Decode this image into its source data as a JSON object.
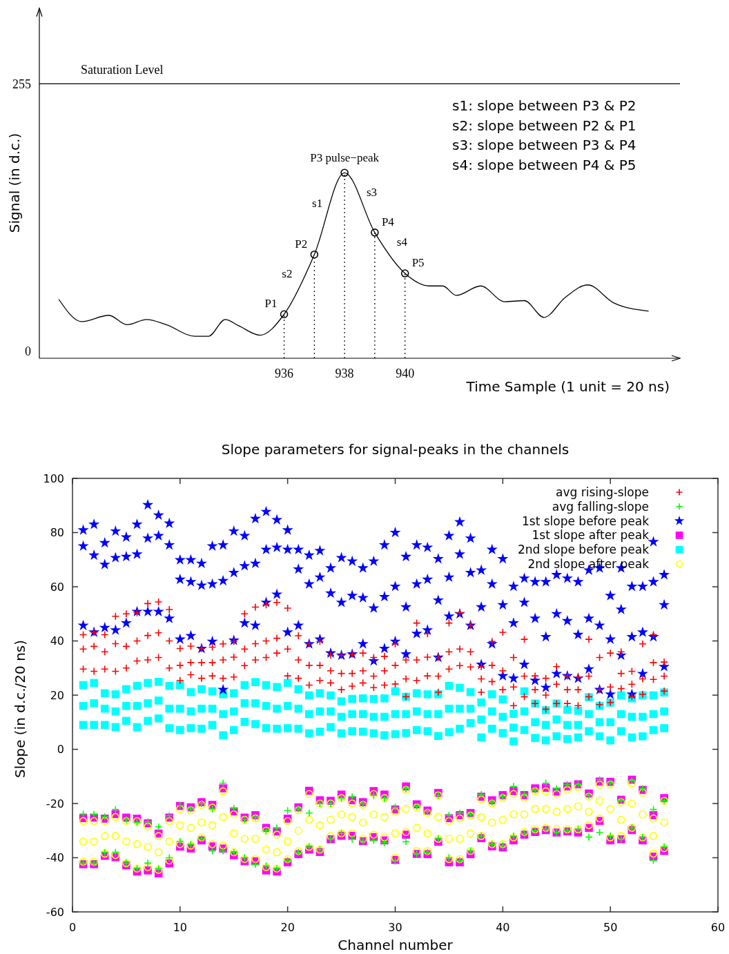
{
  "chart_data": [
    {
      "type": "line",
      "xlabel": "Time Sample (1 unit = 20 ns)",
      "ylabel": "Signal (in d.c.)",
      "xlim": [
        927.9,
        949.1
      ],
      "ylim": [
        -7,
        327
      ],
      "xticks": [
        936,
        938,
        940
      ],
      "yticks": [
        0,
        255
      ],
      "ref_lines": [
        {
          "axis": "y",
          "value": 255,
          "label": "Saturation Level",
          "color": "#000000"
        }
      ],
      "annotations": [
        "s1: slope between P3 & P2",
        "s2: slope between P2 & P1",
        "s3: slope between P3 & P4",
        "s4: slope between P4 & P5",
        {
          "text": "P1",
          "x": 936,
          "y": 35
        },
        {
          "text": "P2",
          "x": 937,
          "y": 92
        },
        {
          "text": "P3  pulse−peak",
          "x": 938,
          "y": 170
        },
        {
          "text": "P4",
          "x": 939,
          "y": 113
        },
        {
          "text": "P5",
          "x": 940,
          "y": 74
        },
        {
          "text": "s1",
          "x": 937.5,
          "y": 131
        },
        {
          "text": "s2",
          "x": 936.5,
          "y": 63.5
        },
        {
          "text": "s3",
          "x": 938.5,
          "y": 141.5
        },
        {
          "text": "s4",
          "x": 939.5,
          "y": 93.5
        }
      ],
      "series": [
        {
          "color": "#000000",
          "marker": "none",
          "x": [
            928.55,
            929.3,
            930.2,
            930.8,
            931.45,
            932.1,
            933.05,
            933.5,
            934.05,
            934.5,
            935.2,
            936,
            937,
            938,
            939,
            940,
            940.8,
            941.25,
            941.7,
            942.5,
            943.3,
            943.95,
            944.6,
            945.3,
            946.05,
            946.9,
            948.05
          ],
          "values": [
            49,
            28,
            34,
            25,
            30,
            25,
            14,
            14,
            30,
            24,
            15,
            35,
            92,
            170,
            113,
            74,
            62,
            62,
            53,
            62,
            47,
            48,
            32,
            51,
            63,
            46,
            38
          ]
        },
        {
          "type": "lollipop",
          "color": "#000000",
          "marker": "circle",
          "line_style": "dotted",
          "x": [
            936,
            937,
            938,
            939,
            940
          ],
          "values": [
            35,
            92,
            170,
            113,
            74
          ]
        }
      ]
    },
    {
      "type": "scatter",
      "title": "Slope parameters for signal-peaks in the channels",
      "xlabel": "Channel number",
      "ylabel": "Slope (in d.c./20 ns)",
      "xlim": [
        0,
        60
      ],
      "ylim": [
        -60,
        100
      ],
      "xticks": [
        0,
        10,
        20,
        30,
        40,
        50,
        60
      ],
      "yticks": [
        -60,
        -40,
        -20,
        0,
        20,
        40,
        60,
        80,
        100
      ],
      "legend": "top right",
      "series": [
        {
          "name": "avg rising-slope",
          "color": "#ff0000",
          "marker": "cross",
          "x": [
            1,
            1,
            1,
            2,
            2,
            2,
            3,
            3,
            3,
            4,
            4,
            4,
            5,
            5,
            5,
            6,
            6,
            6,
            7,
            7,
            7,
            8,
            8,
            8,
            9,
            9,
            9,
            10,
            10,
            10,
            11,
            11,
            11,
            12,
            12,
            12,
            13,
            13,
            13,
            14,
            14,
            14,
            15,
            15,
            15,
            16,
            16,
            16,
            17,
            17,
            17,
            18,
            18,
            18,
            19,
            19,
            19,
            20,
            20,
            20,
            21,
            21,
            21,
            22,
            22,
            22,
            23,
            23,
            23,
            24,
            24,
            24,
            25,
            25,
            25,
            26,
            26,
            26,
            27,
            27,
            27,
            28,
            28,
            28,
            29,
            29,
            29,
            30,
            30,
            30,
            31,
            31,
            31,
            32,
            32,
            32,
            33,
            33,
            33,
            34,
            34,
            34,
            35,
            35,
            35,
            36,
            36,
            36,
            37,
            37,
            37,
            38,
            38,
            38,
            39,
            39,
            39,
            40,
            40,
            40,
            41,
            41,
            41,
            42,
            42,
            42,
            43,
            43,
            43,
            44,
            44,
            44,
            45,
            45,
            45,
            46,
            46,
            46,
            47,
            47,
            47,
            48,
            48,
            48,
            49,
            49,
            49,
            50,
            50,
            50,
            51,
            51,
            51,
            52,
            52,
            52,
            53,
            53,
            53,
            54,
            54,
            54,
            55,
            55,
            55
          ],
          "values": [
            29.6,
            37,
            42.3,
            28.8,
            38,
            43.2,
            29.6,
            36,
            42.3,
            28.8,
            39,
            49.1,
            30,
            38,
            50,
            32.6,
            40,
            50.4,
            33,
            42,
            53.8,
            33.9,
            43,
            54.4,
            30,
            40,
            51.6,
            25.4,
            31,
            37.2,
            27.5,
            32,
            38.1,
            26.2,
            32,
            37.2,
            27.1,
            32,
            37.7,
            26.2,
            33,
            38.9,
            26.7,
            34,
            39.8,
            30.9,
            37,
            50,
            33,
            39,
            52.5,
            33.9,
            40,
            53.3,
            35.5,
            41,
            54.2,
            27.1,
            37,
            52.1,
            26.2,
            33,
            41.9,
            23.7,
            31,
            38.9,
            25.4,
            31,
            39.8,
            24.5,
            29,
            34.7,
            22,
            28,
            34.7,
            23.3,
            28,
            35.1,
            24.5,
            29,
            35.5,
            22.8,
            27,
            33.9,
            23.7,
            29,
            34.3,
            24.1,
            31,
            38.9,
            19.4,
            26,
            33,
            25.4,
            33,
            46.6,
            27.1,
            34,
            42.7,
            21.1,
            27,
            33.9,
            29.6,
            36,
            46.6,
            30.9,
            37,
            50.4,
            30.4,
            36,
            45.7,
            21.1,
            26,
            30.5,
            25,
            31,
            39.8,
            22,
            29,
            43.2,
            16.1,
            23,
            33.9,
            19.4,
            27,
            40.6,
            16.9,
            22,
            27.1,
            14.8,
            20,
            26.2,
            16.9,
            24,
            30.5,
            16.9,
            22,
            27.1,
            16.1,
            22,
            26.7,
            19.4,
            27,
            40.6,
            16.5,
            22,
            33.9,
            17.3,
            23,
            35.5,
            22.4,
            28,
            36,
            19.4,
            24,
            28.8,
            20.3,
            26,
            38.9,
            25.8,
            32,
            42.3,
            21.5,
            27,
            32.2
          ]
        },
        {
          "name": "avg falling-slope",
          "color": "#00ff00",
          "marker": "cross",
          "x": [
            1,
            1,
            2,
            2,
            3,
            3,
            4,
            4,
            5,
            5,
            6,
            6,
            7,
            7,
            8,
            8,
            9,
            9,
            10,
            10,
            11,
            11,
            12,
            12,
            13,
            13,
            14,
            14,
            15,
            15,
            16,
            16,
            17,
            17,
            18,
            18,
            19,
            19,
            20,
            20,
            21,
            21,
            22,
            22,
            23,
            23,
            24,
            24,
            25,
            25,
            26,
            26,
            27,
            27,
            28,
            28,
            29,
            29,
            30,
            30,
            31,
            31,
            32,
            32,
            33,
            33,
            34,
            34,
            35,
            35,
            36,
            36,
            37,
            37,
            38,
            38,
            39,
            39,
            40,
            40,
            41,
            41,
            42,
            42,
            43,
            43,
            44,
            44,
            45,
            45,
            46,
            46,
            47,
            47,
            48,
            48,
            49,
            49,
            50,
            50,
            51,
            51,
            52,
            52,
            53,
            53,
            54,
            54,
            55,
            55
          ],
          "values": [
            -23.9,
            -42,
            -24,
            -42,
            -24.9,
            -38,
            -22.2,
            -38,
            -26,
            -42,
            -27,
            -44,
            -26.8,
            -42,
            -28.6,
            -44,
            -24.5,
            -40,
            -20.7,
            -34,
            -22,
            -35,
            -20,
            -33,
            -22,
            -37.5,
            -12.5,
            -37.5,
            -21.8,
            -38,
            -26,
            -40,
            -25,
            -42.5,
            -30,
            -43,
            -29,
            -44,
            -22.6,
            -41,
            -22,
            -38,
            -23.5,
            -36,
            -20,
            -37,
            -20,
            -33.2,
            -18,
            -31,
            -17.5,
            -33.2,
            -20,
            -33.9,
            -17,
            -33.6,
            -18,
            -34.5,
            -21.4,
            -41.3,
            -14.5,
            -34.1,
            -21,
            -38.6,
            -23,
            -38,
            -17,
            -33,
            -24.3,
            -40,
            -23.5,
            -41,
            -24,
            -37.5,
            -16.7,
            -32,
            -19.5,
            -35,
            -17.5,
            -35.5,
            -13.7,
            -32,
            -16.5,
            -31,
            -15,
            -30,
            -12.5,
            -29.5,
            -14.5,
            -30.7,
            -13,
            -30,
            -12.9,
            -29.5,
            -17,
            -32.4,
            -11.2,
            -30.7,
            -12.5,
            -32,
            -19,
            -33.2,
            -11.5,
            -29,
            -14.5,
            -32.5,
            -22.2,
            -41,
            -19,
            -36
          ]
        },
        {
          "name": "1st slope before peak",
          "color": "#0000ff",
          "marker": "star",
          "x": [
            1,
            1,
            1,
            2,
            2,
            2,
            3,
            3,
            3,
            4,
            4,
            4,
            5,
            5,
            5,
            6,
            6,
            6,
            7,
            7,
            7,
            8,
            8,
            8,
            9,
            9,
            9,
            10,
            10,
            10,
            11,
            11,
            11,
            12,
            12,
            12,
            13,
            13,
            13,
            14,
            14,
            14,
            15,
            15,
            15,
            16,
            16,
            16,
            17,
            17,
            17,
            18,
            18,
            18,
            19,
            19,
            19,
            20,
            20,
            20,
            21,
            21,
            21,
            22,
            22,
            22,
            23,
            23,
            23,
            24,
            24,
            24,
            25,
            25,
            25,
            26,
            26,
            26,
            27,
            27,
            27,
            28,
            28,
            28,
            29,
            29,
            29,
            30,
            30,
            30,
            31,
            31,
            31,
            32,
            32,
            32,
            33,
            33,
            33,
            34,
            34,
            34,
            35,
            35,
            35,
            36,
            36,
            36,
            37,
            37,
            37,
            38,
            38,
            38,
            39,
            39,
            39,
            40,
            40,
            40,
            41,
            41,
            41,
            42,
            42,
            42,
            43,
            43,
            43,
            44,
            44,
            44,
            45,
            45,
            45,
            46,
            46,
            46,
            47,
            47,
            47,
            48,
            48,
            48,
            49,
            49,
            49,
            50,
            50,
            50,
            51,
            51,
            51,
            52,
            52,
            52,
            53,
            53,
            53,
            54,
            54,
            54,
            55,
            55,
            55
          ],
          "values": [
            45.7,
            75,
            80.9,
            43.2,
            71.6,
            83,
            44.9,
            68.2,
            76.2,
            44,
            70.7,
            80.5,
            46.6,
            71.1,
            78.3,
            50.8,
            72,
            83,
            50.8,
            77.9,
            90.2,
            50.8,
            78.8,
            86.4,
            48.3,
            75.4,
            83.4,
            40.6,
            62.7,
            69.9,
            41.9,
            61.8,
            69.9,
            37.2,
            60.5,
            68.6,
            39.8,
            61,
            75,
            22,
            62.2,
            75.4,
            40.2,
            65.2,
            80.5,
            46.6,
            67.7,
            78.8,
            45.7,
            68.6,
            85.1,
            54.2,
            73.7,
            87.7,
            57.2,
            74.5,
            84.7,
            43.2,
            73.7,
            80.9,
            45.7,
            66.5,
            73.7,
            38.9,
            61,
            71.6,
            40.6,
            63.5,
            73.3,
            35.5,
            57.6,
            66.9,
            34.7,
            54.2,
            70.7,
            35.1,
            56.7,
            69.4,
            38.9,
            55.9,
            66.9,
            32.6,
            52.1,
            69.4,
            37.2,
            56.3,
            75.4,
            39.8,
            60.1,
            80,
            35.1,
            52.5,
            71.1,
            42.7,
            61,
            75.4,
            44,
            62.7,
            74.5,
            33.9,
            55,
            70.3,
            49.1,
            63.5,
            78.8,
            50,
            72,
            83.9,
            45.7,
            65.2,
            77.9,
            31.3,
            52.5,
            66.1,
            38.9,
            61,
            73.7,
            27.1,
            53.3,
            70.3,
            26.2,
            46.6,
            60.1,
            31.3,
            54.2,
            63.1,
            25.4,
            48.3,
            61.8,
            22.8,
            41.5,
            61.8,
            27.9,
            50,
            64.4,
            27.1,
            47.4,
            63.1,
            26.2,
            42.3,
            61.8,
            29.6,
            48.3,
            66.1,
            22,
            45.7,
            66.9,
            20.3,
            40.6,
            56.7,
            34.7,
            51.6,
            66.9,
            20.3,
            41.5,
            60.1,
            27.9,
            43.2,
            60.1,
            41.5,
            61.8,
            76.6,
            30.5,
            53.3,
            64.4
          ]
        },
        {
          "name": "1st slope after peak",
          "color": "#ff00ff",
          "marker": "square",
          "x": [
            1,
            1,
            2,
            2,
            3,
            3,
            4,
            4,
            5,
            5,
            6,
            6,
            7,
            7,
            8,
            8,
            9,
            9,
            10,
            10,
            11,
            11,
            12,
            12,
            13,
            13,
            14,
            14,
            15,
            15,
            16,
            16,
            17,
            17,
            18,
            18,
            19,
            19,
            20,
            20,
            21,
            21,
            22,
            22,
            23,
            23,
            24,
            24,
            25,
            25,
            26,
            26,
            27,
            27,
            28,
            28,
            29,
            29,
            30,
            30,
            31,
            31,
            32,
            32,
            33,
            33,
            34,
            34,
            35,
            35,
            36,
            36,
            37,
            37,
            38,
            38,
            39,
            39,
            40,
            40,
            41,
            41,
            42,
            42,
            43,
            43,
            44,
            44,
            45,
            45,
            46,
            46,
            47,
            47,
            48,
            48,
            49,
            49,
            50,
            50,
            51,
            51,
            52,
            52,
            53,
            53,
            54,
            54,
            55,
            55
          ],
          "values": [
            -25.4,
            -42.4,
            -25.2,
            -42.4,
            -25.6,
            -39.3,
            -23.9,
            -39.8,
            -25.2,
            -42.8,
            -25.6,
            -45.1,
            -27.3,
            -44.7,
            -31.1,
            -45.8,
            -25.2,
            -42.1,
            -20.9,
            -35.9,
            -21.4,
            -36.6,
            -19.5,
            -33.6,
            -20.5,
            -35.8,
            -14.4,
            -36.6,
            -22.9,
            -39.1,
            -25.2,
            -41.3,
            -24.3,
            -41.3,
            -29,
            -44.7,
            -30.3,
            -45.1,
            -25.6,
            -41.7,
            -21.4,
            -38.7,
            -15.3,
            -37,
            -18.8,
            -37.9,
            -19,
            -33.2,
            -16.7,
            -31.9,
            -18.8,
            -31.9,
            -19.5,
            -33.9,
            -15.4,
            -32.4,
            -16.7,
            -33.6,
            -22.2,
            -40.8,
            -13.7,
            -31.5,
            -20.3,
            -38.6,
            -22.6,
            -38.7,
            -16.1,
            -34.1,
            -25.4,
            -41.7,
            -24.3,
            -41.7,
            -23.5,
            -38.7,
            -17.5,
            -32.8,
            -18.8,
            -35.8,
            -16.9,
            -36.2,
            -15.4,
            -33.6,
            -16.9,
            -31.5,
            -14.4,
            -30.5,
            -14.2,
            -29.8,
            -15.6,
            -30.7,
            -13.7,
            -30.3,
            -12.9,
            -30.7,
            -16.3,
            -29,
            -11.9,
            -26.4,
            -12,
            -33.6,
            -18.6,
            -33.2,
            -11.2,
            -29.8,
            -15,
            -33.6,
            -24.3,
            -39.6,
            -18,
            -37.5
          ]
        },
        {
          "name": "2nd slope before peak",
          "color": "#00ffff",
          "marker": "square",
          "x": [
            1,
            1,
            1,
            2,
            2,
            2,
            3,
            3,
            3,
            4,
            4,
            4,
            5,
            5,
            5,
            6,
            6,
            6,
            7,
            7,
            7,
            8,
            8,
            8,
            9,
            9,
            9,
            10,
            10,
            10,
            11,
            11,
            11,
            12,
            12,
            12,
            13,
            13,
            13,
            14,
            14,
            14,
            15,
            15,
            15,
            16,
            16,
            16,
            17,
            17,
            17,
            18,
            18,
            18,
            19,
            19,
            19,
            20,
            20,
            20,
            21,
            21,
            21,
            22,
            22,
            22,
            23,
            23,
            23,
            24,
            24,
            24,
            25,
            25,
            25,
            26,
            26,
            26,
            27,
            27,
            27,
            28,
            28,
            28,
            29,
            29,
            29,
            30,
            30,
            30,
            31,
            31,
            31,
            32,
            32,
            32,
            33,
            33,
            33,
            34,
            34,
            34,
            35,
            35,
            35,
            36,
            36,
            36,
            37,
            37,
            37,
            38,
            38,
            38,
            39,
            39,
            39,
            40,
            40,
            40,
            41,
            41,
            41,
            42,
            42,
            42,
            43,
            43,
            43,
            44,
            44,
            44,
            45,
            45,
            45,
            46,
            46,
            46,
            47,
            47,
            47,
            48,
            48,
            48,
            49,
            49,
            49,
            50,
            50,
            50,
            51,
            51,
            51,
            52,
            52,
            52,
            53,
            53,
            53,
            54,
            54,
            54,
            55,
            55,
            55
          ],
          "values": [
            9,
            16,
            23.7,
            9,
            17,
            24.5,
            9,
            15,
            20.7,
            8.2,
            14,
            20.3,
            10.5,
            16,
            22.2,
            8.2,
            16,
            23.4,
            10.5,
            17,
            24.5,
            11.4,
            18,
            24.9,
            7.8,
            15,
            23.4,
            7.1,
            15,
            23.7,
            7.8,
            14,
            21.1,
            7.6,
            15,
            22.2,
            9,
            15,
            21.4,
            5.2,
            13,
            20.3,
            7.1,
            14,
            20.7,
            10.1,
            17,
            23.7,
            9.3,
            17,
            24.8,
            7.8,
            16,
            23.7,
            7.6,
            15,
            23,
            7.8,
            16,
            24.5,
            7.6,
            15,
            22.2,
            5.9,
            13,
            19.9,
            6.5,
            14,
            20.7,
            8.2,
            14,
            19.9,
            5.9,
            12,
            17.7,
            6.7,
            13,
            18.6,
            6.5,
            13,
            18.8,
            5.9,
            12,
            18.6,
            5.2,
            12,
            18.8,
            5.6,
            13,
            21.4,
            6,
            13,
            19.4,
            7.1,
            14,
            20.7,
            6.7,
            13,
            20.3,
            4.9,
            13,
            20.3,
            6.3,
            15,
            23.4,
            7.6,
            15,
            22.7,
            9.7,
            15,
            21.1,
            4.4,
            11,
            17.3,
            7.6,
            14,
            20.3,
            6,
            12,
            18.4,
            2.9,
            8,
            13.1,
            7.1,
            14,
            21.4,
            4.2,
            10,
            16.9,
            3.3,
            9,
            14.4,
            4.8,
            11,
            16.9,
            3.8,
            9,
            14.6,
            4.4,
            9,
            14.2,
            6.7,
            13,
            19.2,
            4.8,
            10,
            16,
            3.3,
            10,
            17.2,
            6.7,
            13,
            19.9,
            4.4,
            12,
            18.8,
            4.8,
            12,
            19.9,
            7.1,
            13,
            19.9,
            7.8,
            14,
            21
          ]
        },
        {
          "name": "2nd slope after peak",
          "color": "#ffff00",
          "marker": "circle",
          "x": [
            1,
            1,
            1,
            2,
            2,
            2,
            3,
            3,
            3,
            4,
            4,
            4,
            5,
            5,
            5,
            6,
            6,
            6,
            7,
            7,
            7,
            8,
            8,
            8,
            9,
            9,
            9,
            10,
            10,
            10,
            11,
            11,
            11,
            12,
            12,
            12,
            13,
            13,
            13,
            14,
            14,
            14,
            15,
            15,
            15,
            16,
            16,
            16,
            17,
            17,
            17,
            18,
            18,
            18,
            19,
            19,
            19,
            20,
            20,
            20,
            21,
            21,
            21,
            22,
            22,
            22,
            23,
            23,
            23,
            24,
            24,
            24,
            25,
            25,
            25,
            26,
            26,
            26,
            27,
            27,
            27,
            28,
            28,
            28,
            29,
            29,
            29,
            30,
            30,
            30,
            31,
            31,
            31,
            32,
            32,
            32,
            33,
            33,
            33,
            34,
            34,
            34,
            35,
            35,
            35,
            36,
            36,
            36,
            37,
            37,
            37,
            38,
            38,
            38,
            39,
            39,
            39,
            40,
            40,
            40,
            41,
            41,
            41,
            42,
            42,
            42,
            43,
            43,
            43,
            44,
            44,
            44,
            45,
            45,
            45,
            46,
            46,
            46,
            47,
            47,
            47,
            48,
            48,
            48,
            49,
            49,
            49,
            50,
            50,
            50,
            51,
            51,
            51,
            52,
            52,
            52,
            53,
            53,
            53,
            54,
            54,
            54,
            55,
            55,
            55
          ],
          "values": [
            -26.5,
            -34,
            -41.5,
            -26.5,
            -34,
            -41.5,
            -26.5,
            -32,
            -38.5,
            -25,
            -32,
            -39,
            -26.5,
            -34,
            -42,
            -26.5,
            -35,
            -44,
            -28.5,
            -36,
            -43.5,
            -32,
            -38,
            -44.5,
            -26.5,
            -34,
            -41,
            -22,
            -28,
            -35,
            -22.5,
            -29,
            -35.5,
            -20.5,
            -27,
            -32.5,
            -21.5,
            -28,
            -35,
            -15.5,
            -25,
            -35.5,
            -24,
            -31,
            -38,
            -26,
            -33,
            -40.5,
            -25.5,
            -33,
            -40.5,
            -30,
            -37,
            -43.5,
            -31.5,
            -38,
            -44,
            -26.5,
            -34,
            -40.5,
            -22.5,
            -30,
            -37.5,
            -16.5,
            -26,
            -36,
            -20,
            -28,
            -37,
            -20,
            -26,
            -32,
            -18,
            -24,
            -31,
            -20,
            -25,
            -31,
            -20.5,
            -27,
            -33,
            -16.5,
            -24,
            -31.5,
            -18,
            -25,
            -32.5,
            -23,
            -31,
            -40,
            -15,
            -22,
            -30.5,
            -21.5,
            -29,
            -37.5,
            -23.5,
            -31,
            -37.5,
            -17,
            -25,
            -33,
            -26.5,
            -33,
            -40.5,
            -25.5,
            -33,
            -40.5,
            -24.5,
            -31,
            -37.5,
            -18.5,
            -25,
            -32,
            -20,
            -27,
            -35,
            -18,
            -26,
            -35,
            -16.5,
            -24,
            -32.5,
            -18,
            -24,
            -30.5,
            -15.5,
            -22,
            -29.5,
            -15.5,
            -22,
            -29,
            -16.5,
            -23,
            -29.5,
            -15,
            -22,
            -29.5,
            -14,
            -21,
            -29.5,
            -17.5,
            -23,
            -28,
            -13,
            -19,
            -25.5,
            -13,
            -22,
            -32.5,
            -19.5,
            -26,
            -32,
            -12.5,
            -20,
            -29,
            -16,
            -24,
            -32.5,
            -25.5,
            -32,
            -38.5,
            -19,
            -27,
            -36.5
          ]
        }
      ]
    }
  ]
}
